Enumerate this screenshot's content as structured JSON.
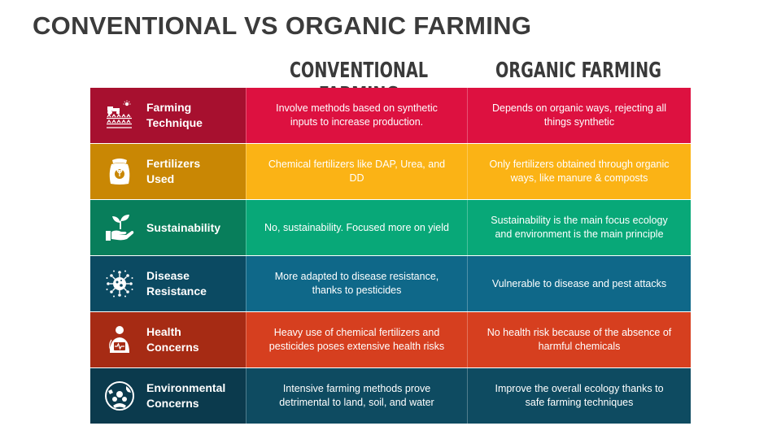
{
  "title": "CONVENTIONAL VS ORGANIC FARMING",
  "headers": {
    "conventional": "CONVENTIONAL FARMING",
    "organic": "ORGANIC FARMING"
  },
  "rows": [
    {
      "label": "Farming\nTechnique",
      "icon": "tractor-farm-icon",
      "conventional": "Involve methods based on synthetic inputs to increase production.",
      "organic": "Depends on organic ways, rejecting all things synthetic",
      "colors": {
        "label": "#a7102f",
        "conventional": "#dd1140",
        "organic": "#dd1140"
      }
    },
    {
      "label": "Fertilizers\nUsed",
      "icon": "fertilizer-bag-icon",
      "conventional": "Chemical fertilizers like DAP, Urea, and DD",
      "organic": "Only fertilizers obtained through organic ways, like manure & composts",
      "colors": {
        "label": "#c98704",
        "conventional": "#fbb315",
        "organic": "#fbb315"
      }
    },
    {
      "label": "Sustainability",
      "icon": "hand-plant-icon",
      "conventional": "No, sustainability. Focused more on yield",
      "organic": "Sustainability is the main focus ecology and environment is the main principle",
      "colors": {
        "label": "#087e5b",
        "conventional": "#08a878",
        "organic": "#08a878"
      }
    },
    {
      "label": "Disease\nResistance",
      "icon": "virus-icon",
      "conventional": "More adapted to disease resistance, thanks to pesticides",
      "organic": "Vulnerable to disease and pest attacks",
      "colors": {
        "label": "#0b4a62",
        "conventional": "#0f6889",
        "organic": "#0f6889"
      }
    },
    {
      "label": "Health\nConcerns",
      "icon": "health-worker-icon",
      "conventional": "Heavy use of chemical fertilizers and pesticides poses extensive health risks",
      "organic": "No health risk because of the absence of harmful chemicals",
      "colors": {
        "label": "#a62b14",
        "conventional": "#d63f1f",
        "organic": "#d63f1f"
      }
    },
    {
      "label": "Environmental\nConcerns",
      "icon": "globe-hands-icon",
      "conventional": "Intensive farming methods prove detrimental to land, soil, and water",
      "organic": "Improve the overall ecology thanks to safe farming techniques",
      "colors": {
        "label": "#0b3a4d",
        "conventional": "#0e4b61",
        "organic": "#0e4b61"
      }
    }
  ]
}
